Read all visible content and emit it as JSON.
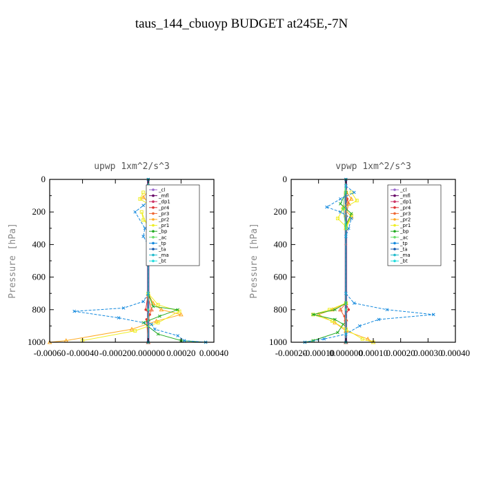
{
  "figure": {
    "title": "taus_144_cbuoyp  BUDGET at245E,-7N"
  },
  "chart_data": [
    {
      "type": "line",
      "title": "upwp   1xm^2/s^3",
      "ylabel": "Pressure [hPa]",
      "xlabel": "",
      "xlim": [
        -0.0006,
        0.0004
      ],
      "ylim": [
        1000,
        0
      ],
      "x_ticks": [
        "-0.00060",
        "-0.00040",
        "-0.00020",
        "0.000000",
        "0.00020",
        "0.00040"
      ],
      "y_ticks": [
        "0",
        "200",
        "400",
        "600",
        "800",
        "1000"
      ],
      "legend_position": "top-right",
      "series": [
        {
          "name": "_cl",
          "color": "#9966cc",
          "marker": "circle",
          "points": [
            [
              0,
              0
            ],
            [
              0,
              1000
            ]
          ]
        },
        {
          "name": "_mfl",
          "color": "#660066",
          "marker": "circle",
          "points": [
            [
              0,
              0
            ],
            [
              0,
              1000
            ]
          ]
        },
        {
          "name": "_dp1",
          "color": "#cc3366",
          "marker": "circle",
          "points": [
            [
              0,
              0
            ],
            [
              0,
              200
            ],
            [
              0,
              400
            ],
            [
              0,
              800
            ],
            [
              0,
              1000
            ]
          ]
        },
        {
          "name": "_pr4",
          "color": "#dd3333",
          "marker": "circle",
          "points": [
            [
              0,
              80
            ],
            [
              5e-06,
              120
            ],
            [
              0,
              200
            ],
            [
              0,
              700
            ],
            [
              -1.5e-05,
              800
            ],
            [
              1e-05,
              830
            ],
            [
              -1e-05,
              860
            ],
            [
              0,
              1000
            ]
          ]
        },
        {
          "name": "_pr3",
          "color": "#ee6633",
          "marker": "triangle",
          "points": [
            [
              0,
              80
            ],
            [
              1e-05,
              150
            ],
            [
              0,
              220
            ],
            [
              0,
              720
            ],
            [
              2e-05,
              800
            ],
            [
              0,
              860
            ],
            [
              0,
              1000
            ]
          ]
        },
        {
          "name": "_pr2",
          "color": "#ffaa22",
          "marker": "triangle",
          "points": [
            [
              0,
              70
            ],
            [
              -3e-05,
              110
            ],
            [
              2e-05,
              160
            ],
            [
              0,
              250
            ],
            [
              0,
              700
            ],
            [
              3e-05,
              760
            ],
            [
              8e-05,
              800
            ],
            [
              0.0002,
              830
            ],
            [
              5e-05,
              870
            ],
            [
              -0.0001,
              920
            ],
            [
              -0.0005,
              990
            ],
            [
              -0.0006,
              1000
            ]
          ]
        },
        {
          "name": "_pr1",
          "color": "#eeee22",
          "marker": "square",
          "points": [
            [
              -3e-05,
              80
            ],
            [
              -5e-05,
              120
            ],
            [
              3e-05,
              170
            ],
            [
              8e-05,
              220
            ],
            [
              2e-05,
              280
            ],
            [
              -3e-05,
              250
            ],
            [
              -4e-05,
              200
            ],
            [
              0,
              300
            ],
            [
              0,
              700
            ],
            [
              6e-05,
              770
            ],
            [
              0.00019,
              810
            ],
            [
              6e-05,
              880
            ],
            [
              -8e-05,
              930
            ],
            [
              -0.0004,
              990
            ]
          ]
        },
        {
          "name": "_bp",
          "color": "#22aa22",
          "marker": "cross",
          "points": [
            [
              0,
              80
            ],
            [
              4e-05,
              150
            ],
            [
              3e-05,
              210
            ],
            [
              0,
              280
            ],
            [
              0,
              700
            ],
            [
              3e-05,
              780
            ],
            [
              0.00018,
              800
            ],
            [
              7e-05,
              840
            ],
            [
              -3e-05,
              880
            ],
            [
              6e-05,
              950
            ],
            [
              0.0002,
              990
            ],
            [
              0.00035,
              1000
            ]
          ]
        },
        {
          "name": "_ac",
          "color": "#66dd66",
          "marker": "circle",
          "points": [
            [
              0,
              0
            ],
            [
              2e-05,
              180
            ],
            [
              0,
              300
            ],
            [
              0,
              800
            ],
            [
              0,
              1000
            ]
          ]
        },
        {
          "name": "_tp",
          "color": "#1188dd",
          "marker": "cross",
          "points": [
            [
              0,
              40
            ],
            [
              3e-05,
              60
            ],
            [
              4e-05,
              100
            ],
            [
              -3e-05,
              160
            ],
            [
              -8e-05,
              200
            ],
            [
              -2e-05,
              300
            ],
            [
              -3e-05,
              350
            ],
            [
              0,
              400
            ],
            [
              0,
              700
            ],
            [
              -3e-05,
              750
            ],
            [
              -0.00015,
              790
            ],
            [
              -0.00045,
              810
            ],
            [
              -0.00018,
              850
            ],
            [
              2e-05,
              890
            ],
            [
              4e-05,
              920
            ],
            [
              0.00018,
              960
            ],
            [
              0.00022,
              990
            ],
            [
              0.00035,
              1000
            ]
          ]
        },
        {
          "name": "_ta",
          "color": "#1155aa",
          "marker": "cross",
          "points": [
            [
              0,
              0
            ],
            [
              0,
              1000
            ]
          ]
        },
        {
          "name": "_ma",
          "color": "#22bbcc",
          "marker": "dash",
          "points": [
            [
              0,
              0
            ],
            [
              0,
              1000
            ]
          ]
        },
        {
          "name": "_bt",
          "color": "#22dddd",
          "marker": "circle",
          "points": [
            [
              0,
              0
            ],
            [
              0,
              1000
            ]
          ]
        }
      ]
    },
    {
      "type": "line",
      "title": "vpwp   1xm^2/s^3",
      "ylabel": "Pressure [hPa]",
      "xlabel": "",
      "xlim": [
        -0.0002,
        0.0004
      ],
      "ylim": [
        1000,
        0
      ],
      "x_ticks": [
        "-0.00020",
        "-0.00010",
        "0.000000",
        "0.00010",
        "0.00020",
        "0.00030",
        "0.00040"
      ],
      "y_ticks": [
        "0",
        "200",
        "400",
        "600",
        "800",
        "1000"
      ],
      "legend_position": "top-right",
      "series": [
        {
          "name": "_cl",
          "color": "#9966cc",
          "marker": "circle",
          "points": [
            [
              0,
              0
            ],
            [
              0,
              1000
            ]
          ]
        },
        {
          "name": "_mfl",
          "color": "#660066",
          "marker": "circle",
          "points": [
            [
              0,
              0
            ],
            [
              0,
              1000
            ]
          ]
        },
        {
          "name": "_dp1",
          "color": "#cc3366",
          "marker": "circle",
          "points": [
            [
              0,
              0
            ],
            [
              0,
              200
            ],
            [
              0,
              400
            ],
            [
              0,
              800
            ],
            [
              0,
              1000
            ]
          ]
        },
        {
          "name": "_pr4",
          "color": "#dd3333",
          "marker": "circle",
          "points": [
            [
              0,
              80
            ],
            [
              5e-06,
              120
            ],
            [
              0,
              200
            ],
            [
              0,
              760
            ],
            [
              1e-05,
              800
            ],
            [
              -5e-06,
              840
            ],
            [
              0,
              1000
            ]
          ]
        },
        {
          "name": "_pr3",
          "color": "#ee6633",
          "marker": "triangle",
          "points": [
            [
              0,
              80
            ],
            [
              1e-05,
              150
            ],
            [
              0,
              220
            ],
            [
              0,
              760
            ],
            [
              -2e-05,
              800
            ],
            [
              0,
              860
            ],
            [
              0,
              1000
            ]
          ]
        },
        {
          "name": "_pr2",
          "color": "#ffaa22",
          "marker": "triangle",
          "points": [
            [
              0,
              70
            ],
            [
              2e-05,
              120
            ],
            [
              -1e-05,
              170
            ],
            [
              2e-05,
              230
            ],
            [
              0,
              300
            ],
            [
              0,
              760
            ],
            [
              -5e-05,
              800
            ],
            [
              -0.0001,
              830
            ],
            [
              -4e-05,
              880
            ],
            [
              0,
              930
            ],
            [
              8e-05,
              980
            ],
            [
              0.0001,
              1000
            ]
          ]
        },
        {
          "name": "_pr1",
          "color": "#eeee22",
          "marker": "square",
          "points": [
            [
              2e-05,
              80
            ],
            [
              4e-05,
              130
            ],
            [
              -1e-05,
              180
            ],
            [
              -3e-05,
              240
            ],
            [
              0,
              290
            ],
            [
              2e-05,
              220
            ],
            [
              0,
              300
            ],
            [
              0,
              760
            ],
            [
              -6e-05,
              800
            ],
            [
              -0.00012,
              830
            ],
            [
              -5e-05,
              870
            ],
            [
              0,
              920
            ],
            [
              6e-05,
              980
            ],
            [
              0.0001,
              1000
            ]
          ]
        },
        {
          "name": "_bp",
          "color": "#22aa22",
          "marker": "cross",
          "points": [
            [
              0,
              80
            ],
            [
              -2e-05,
              150
            ],
            [
              2e-05,
              210
            ],
            [
              0,
              280
            ],
            [
              0,
              760
            ],
            [
              -4e-05,
              800
            ],
            [
              -0.00012,
              830
            ],
            [
              -4e-05,
              860
            ],
            [
              -1e-05,
              890
            ],
            [
              -3e-05,
              940
            ],
            [
              -0.00012,
              990
            ],
            [
              -0.00015,
              1000
            ]
          ]
        },
        {
          "name": "_ac",
          "color": "#66dd66",
          "marker": "circle",
          "points": [
            [
              0,
              0
            ],
            [
              -1e-05,
              180
            ],
            [
              0,
              300
            ],
            [
              0,
              800
            ],
            [
              0,
              1000
            ]
          ]
        },
        {
          "name": "_tp",
          "color": "#1188dd",
          "marker": "cross",
          "points": [
            [
              0,
              40
            ],
            [
              3e-05,
              80
            ],
            [
              -2e-05,
              120
            ],
            [
              -7e-05,
              170
            ],
            [
              -2e-05,
              200
            ],
            [
              2e-05,
              240
            ],
            [
              1e-05,
              300
            ],
            [
              0,
              350
            ],
            [
              0,
              700
            ],
            [
              3e-05,
              760
            ],
            [
              0.00015,
              800
            ],
            [
              0.00032,
              830
            ],
            [
              0.00012,
              860
            ],
            [
              5e-05,
              900
            ],
            [
              0,
              950
            ],
            [
              -8e-05,
              980
            ],
            [
              -0.00015,
              1000
            ]
          ]
        },
        {
          "name": "_ta",
          "color": "#1155aa",
          "marker": "cross",
          "points": [
            [
              0,
              0
            ],
            [
              0,
              1000
            ]
          ]
        },
        {
          "name": "_ma",
          "color": "#22bbcc",
          "marker": "dash",
          "points": [
            [
              0,
              0
            ],
            [
              0,
              1000
            ]
          ]
        },
        {
          "name": "_bt",
          "color": "#22dddd",
          "marker": "circle",
          "points": [
            [
              0,
              0
            ],
            [
              0,
              1000
            ]
          ]
        }
      ]
    }
  ]
}
